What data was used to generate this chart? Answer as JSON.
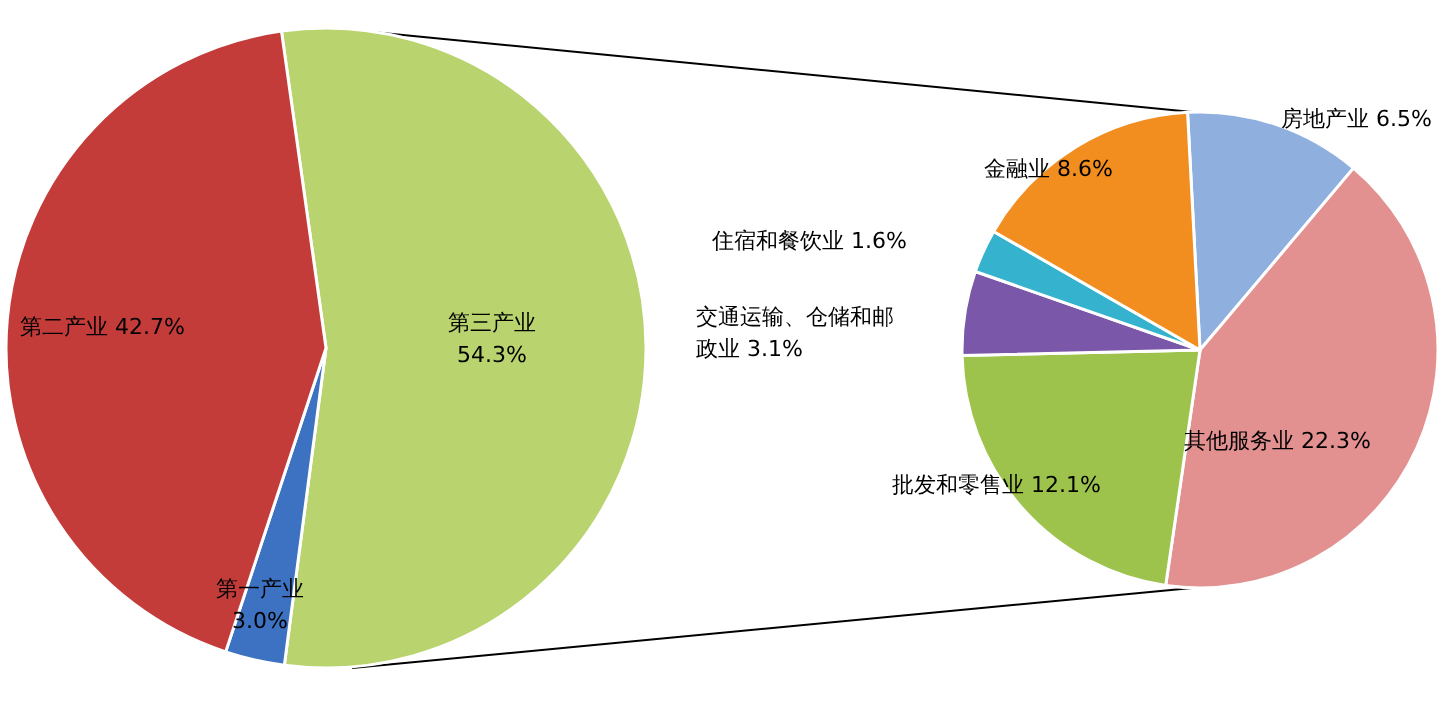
{
  "chart_data": [
    {
      "type": "pie",
      "categories": [
        "第三产业",
        "第一产业",
        "第二产业"
      ],
      "values": [
        54.3,
        3.0,
        42.7
      ],
      "colors": [
        "#b9d46e",
        "#3d72c2",
        "#c43c3a"
      ],
      "value_labels": [
        "54.3%",
        "3.0%",
        "42.7%"
      ]
    },
    {
      "type": "pie",
      "categories": [
        "房地产业",
        "其他服务业",
        "批发和零售业",
        "交通运输、仓储和邮政业",
        "住宿和餐饮业",
        "金融业"
      ],
      "values": [
        6.5,
        22.3,
        12.1,
        3.1,
        1.6,
        8.6
      ],
      "colors": [
        "#8fb0de",
        "#e29090",
        "#9dc34c",
        "#7b57a9",
        "#35b2cd",
        "#f28d20"
      ],
      "value_labels": [
        "6.5%",
        "22.3%",
        "12.1%",
        "3.1%",
        "1.6%",
        "8.6%"
      ]
    }
  ]
}
